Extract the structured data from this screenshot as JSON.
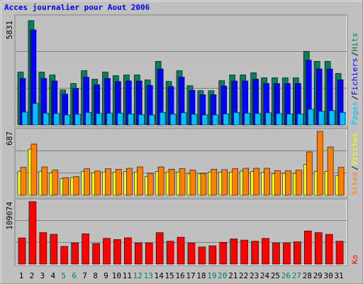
{
  "chart_data": {
    "type": "bar",
    "title": "Acces journalier pour Aout 2006",
    "categories": [
      "1",
      "2",
      "3",
      "4",
      "5",
      "6",
      "7",
      "8",
      "9",
      "10",
      "11",
      "12",
      "13",
      "14",
      "15",
      "16",
      "17",
      "18",
      "19",
      "20",
      "21",
      "22",
      "23",
      "24",
      "25",
      "26",
      "27",
      "28",
      "29",
      "30",
      "31"
    ],
    "category_colors": [
      "#000000",
      "#000000",
      "#000000",
      "#000000",
      "#00805c",
      "#00805c",
      "#000000",
      "#000000",
      "#000000",
      "#000000",
      "#000000",
      "#00805c",
      "#00805c",
      "#000000",
      "#000000",
      "#000000",
      "#000000",
      "#000000",
      "#00805c",
      "#00805c",
      "#000000",
      "#000000",
      "#000000",
      "#000000",
      "#000000",
      "#00805c",
      "#00805c",
      "#000000",
      "#000000",
      "#000000",
      "#000000"
    ],
    "legend_separator": "/",
    "panels": [
      {
        "ylim": [
          0,
          5831
        ],
        "yticks": [
          5831
        ],
        "series": [
          {
            "name": "Hits",
            "color": "#00805c",
            "values": [
              2955,
              5831,
              2955,
              2796,
              1957,
              2316,
              3035,
              2556,
              2955,
              2756,
              2796,
              2796,
              2516,
              3555,
              2436,
              3035,
              2197,
              1917,
              1917,
              2476,
              2796,
              2796,
              2916,
              2636,
              2636,
              2636,
              2636,
              4114,
              3555,
              3555,
              2876
            ]
          },
          {
            "name": "Fichiers",
            "color": "#0000ff",
            "values": [
              2600,
              5313,
              2600,
              2460,
              1720,
              2040,
              2670,
              2250,
              2600,
              2425,
              2460,
              2460,
              2215,
              3130,
              2145,
              2670,
              1935,
              1690,
              1690,
              2180,
              2460,
              2460,
              2565,
              2320,
              2320,
              2320,
              2320,
              3620,
              3130,
              3130,
              2530
            ]
          },
          {
            "name": "Pages",
            "color": "#00c0ff",
            "values": [
              720,
              1200,
              660,
              640,
              560,
              600,
              700,
              640,
              660,
              660,
              620,
              580,
              560,
              700,
              600,
              680,
              600,
              560,
              560,
              620,
              700,
              660,
              640,
              680,
              640,
              620,
              620,
              880,
              760,
              800,
              700
            ]
          }
        ]
      },
      {
        "ylim": [
          0,
          687
        ],
        "yticks": [
          687
        ],
        "series": [
          {
            "name": "Visites",
            "color": "#ffff00",
            "values": [
              255,
              496,
              255,
              240,
              180,
              190,
              255,
              240,
              250,
              250,
              255,
              250,
              200,
              255,
              250,
              250,
              230,
              230,
              250,
              250,
              250,
              260,
              255,
              245,
              230,
              235,
              235,
              330,
              255,
              255,
              210
            ]
          },
          {
            "name": "Sites",
            "color": "#ff8000",
            "values": [
              300,
              550,
              305,
              270,
              190,
              200,
              285,
              260,
              285,
              280,
              290,
              305,
              235,
              305,
              280,
              285,
              270,
              235,
              280,
              275,
              285,
              290,
              290,
              290,
              265,
              265,
              270,
              466,
              687,
              519,
              300
            ]
          }
        ]
      },
      {
        "ylim": [
          0,
          109074
        ],
        "yticks": [
          109074
        ],
        "series": [
          {
            "name": "Ko",
            "color": "#ff0000",
            "values": [
              45800,
              109074,
              55000,
              52000,
              31000,
              37000,
              53000,
              36000,
              45000,
              43000,
              46000,
              37000,
              37000,
              55000,
              40000,
              47000,
              37000,
              30000,
              32000,
              38000,
              44000,
              42000,
              40000,
              45000,
              37000,
              37000,
              39000,
              58000,
              55000,
              52000,
              40000
            ]
          }
        ]
      }
    ]
  }
}
